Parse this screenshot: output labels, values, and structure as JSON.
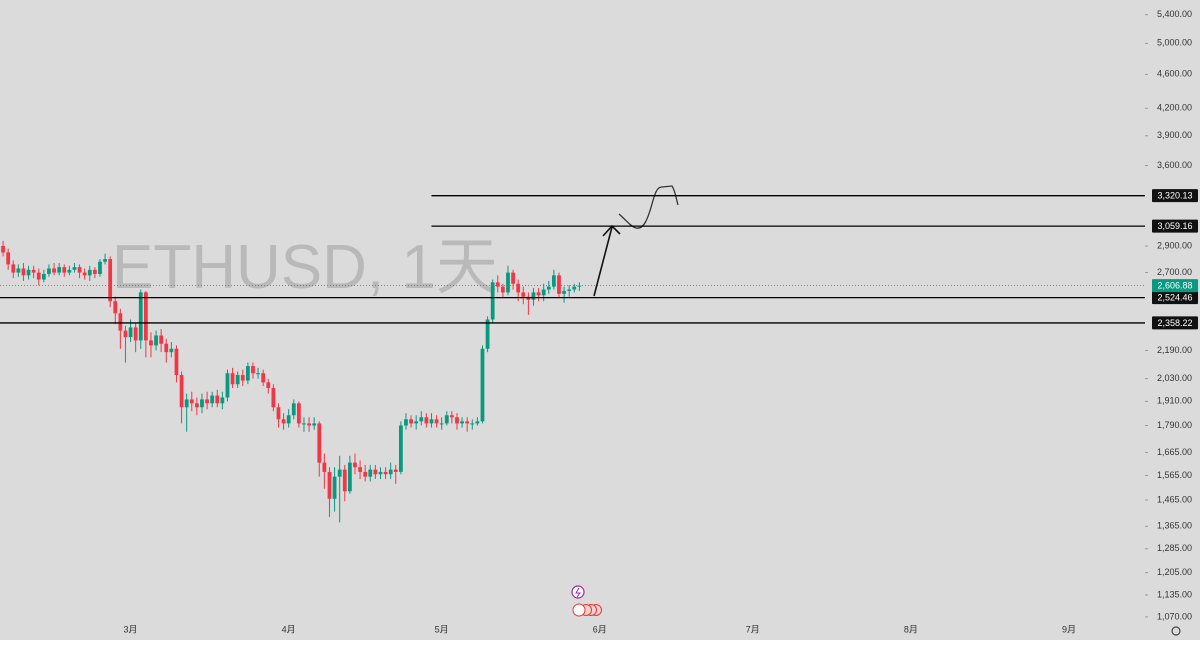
{
  "chart_data": {
    "type": "candlestick",
    "watermark": "ETHUSD, 1天",
    "log_scale": true,
    "up_color": "#089981",
    "down_color": "#f23645",
    "xlim": [
      -0.6,
      223.9
    ],
    "xticks": [
      {
        "value": 25,
        "label": "3月"
      },
      {
        "value": 56,
        "label": "4月"
      },
      {
        "value": 86,
        "label": "5月"
      },
      {
        "value": 117,
        "label": "6月"
      },
      {
        "value": 147,
        "label": "7月"
      },
      {
        "value": 178,
        "label": "8月"
      },
      {
        "value": 209,
        "label": "9月"
      }
    ],
    "ylim": [
      1033,
      5618
    ],
    "yticks": [
      {
        "value": 1070,
        "label": "1,070.00"
      },
      {
        "value": 1135,
        "label": "1,135.00"
      },
      {
        "value": 1205,
        "label": "1,205.00"
      },
      {
        "value": 1285,
        "label": "1,285.00"
      },
      {
        "value": 1365,
        "label": "1,365.00"
      },
      {
        "value": 1465,
        "label": "1,465.00"
      },
      {
        "value": 1565,
        "label": "1,565.00"
      },
      {
        "value": 1665,
        "label": "1,665.00"
      },
      {
        "value": 1790,
        "label": "1,790.00"
      },
      {
        "value": 1910,
        "label": "1,910.00"
      },
      {
        "value": 2030,
        "label": "2,030.00"
      },
      {
        "value": 2190,
        "label": "2,190.00"
      },
      {
        "value": 2700,
        "label": "2,700.00"
      },
      {
        "value": 2900,
        "label": "2,900.00"
      },
      {
        "value": 3600,
        "label": "3,600.00"
      },
      {
        "value": 3900,
        "label": "3,900.00"
      },
      {
        "value": 4200,
        "label": "4,200.00"
      },
      {
        "value": 4600,
        "label": "4,600.00"
      },
      {
        "value": 5000,
        "label": "5,000.00"
      },
      {
        "value": 5400,
        "label": "5,400.00"
      }
    ],
    "open": [
      2900,
      2850,
      2760,
      2700,
      2730,
      2680,
      2720,
      2700,
      2650,
      2690,
      2730,
      2700,
      2740,
      2700,
      2720,
      2740,
      2700,
      2680,
      2720,
      2690,
      2780,
      2800,
      2500,
      2420,
      2310,
      2270,
      2330,
      2250,
      2560,
      2250,
      2220,
      2280,
      2230,
      2180,
      2200,
      2050,
      1880,
      1920,
      1900,
      1880,
      1920,
      1900,
      1940,
      1900,
      1930,
      2060,
      2000,
      2050,
      2020,
      2100,
      2060,
      2060,
      2010,
      1980,
      1880,
      1820,
      1800,
      1840,
      1900,
      1800,
      1800,
      1790,
      1800,
      1620,
      1580,
      1470,
      1560,
      1590,
      1500,
      1620,
      1600,
      1580,
      1560,
      1590,
      1570,
      1580,
      1570,
      1590,
      1580,
      1790,
      1820,
      1800,
      1810,
      1830,
      1800,
      1820,
      1800,
      1800,
      1840,
      1830,
      1800,
      1810,
      1800,
      1800,
      1810,
      2200,
      2380,
      2630,
      2600,
      2560,
      2700,
      2620,
      2560,
      2530,
      2510,
      2560,
      2540,
      2580,
      2600,
      2680,
      2550,
      2570,
      2580,
      2600
    ],
    "high": [
      2940,
      2880,
      2790,
      2760,
      2770,
      2750,
      2750,
      2730,
      2720,
      2760,
      2770,
      2770,
      2760,
      2750,
      2770,
      2760,
      2730,
      2750,
      2740,
      2800,
      2840,
      2820,
      2530,
      2450,
      2340,
      2380,
      2360,
      2580,
      2570,
      2300,
      2310,
      2320,
      2260,
      2240,
      2220,
      2070,
      1950,
      1960,
      1930,
      1950,
      1960,
      1960,
      1970,
      1960,
      2080,
      2090,
      2070,
      2080,
      2120,
      2120,
      2090,
      2080,
      2030,
      2000,
      1900,
      1850,
      1870,
      1920,
      1910,
      1830,
      1830,
      1830,
      1810,
      1660,
      1600,
      1600,
      1650,
      1610,
      1650,
      1660,
      1630,
      1610,
      1610,
      1610,
      1600,
      1600,
      1620,
      1610,
      1810,
      1850,
      1840,
      1840,
      1860,
      1850,
      1850,
      1840,
      1830,
      1860,
      1860,
      1850,
      1830,
      1830,
      1820,
      1830,
      2220,
      2400,
      2650,
      2680,
      2620,
      2750,
      2720,
      2650,
      2600,
      2560,
      2590,
      2590,
      2620,
      2640,
      2720,
      2700,
      2600,
      2610,
      2620,
      2630
    ],
    "low": [
      2820,
      2720,
      2660,
      2670,
      2640,
      2650,
      2660,
      2610,
      2630,
      2670,
      2680,
      2680,
      2670,
      2680,
      2700,
      2660,
      2650,
      2640,
      2660,
      2670,
      2760,
      2460,
      2350,
      2200,
      2120,
      2240,
      2180,
      2200,
      2150,
      2150,
      2190,
      2180,
      2120,
      2150,
      2010,
      1800,
      1760,
      1860,
      1840,
      1850,
      1870,
      1880,
      1880,
      1870,
      1910,
      1980,
      1980,
      1990,
      2000,
      2030,
      2030,
      1990,
      1950,
      1860,
      1780,
      1770,
      1780,
      1820,
      1780,
      1760,
      1760,
      1770,
      1560,
      1510,
      1400,
      1420,
      1380,
      1460,
      1490,
      1570,
      1550,
      1540,
      1540,
      1550,
      1550,
      1550,
      1550,
      1530,
      1570,
      1770,
      1780,
      1770,
      1790,
      1780,
      1780,
      1780,
      1770,
      1790,
      1800,
      1770,
      1780,
      1760,
      1770,
      1790,
      1800,
      2180,
      2360,
      2560,
      2520,
      2540,
      2580,
      2500,
      2480,
      2410,
      2470,
      2500,
      2500,
      2550,
      2580,
      2520,
      2490,
      2530,
      2560,
      2570
    ],
    "close": [
      2850,
      2760,
      2700,
      2730,
      2680,
      2720,
      2700,
      2650,
      2690,
      2730,
      2700,
      2740,
      2700,
      2720,
      2740,
      2700,
      2680,
      2720,
      2690,
      2780,
      2800,
      2500,
      2420,
      2310,
      2270,
      2330,
      2250,
      2560,
      2250,
      2220,
      2280,
      2230,
      2180,
      2200,
      2050,
      1880,
      1920,
      1900,
      1880,
      1920,
      1900,
      1940,
      1900,
      1930,
      2060,
      2000,
      2050,
      2020,
      2100,
      2060,
      2060,
      2010,
      1980,
      1880,
      1820,
      1800,
      1840,
      1900,
      1800,
      1800,
      1790,
      1800,
      1620,
      1580,
      1470,
      1560,
      1590,
      1500,
      1620,
      1600,
      1580,
      1560,
      1590,
      1570,
      1580,
      1570,
      1590,
      1580,
      1790,
      1820,
      1800,
      1810,
      1830,
      1800,
      1820,
      1800,
      1800,
      1840,
      1830,
      1800,
      1810,
      1800,
      1800,
      1810,
      2200,
      2380,
      2630,
      2600,
      2560,
      2700,
      2620,
      2560,
      2530,
      2510,
      2560,
      2540,
      2580,
      2600,
      2680,
      2550,
      2570,
      2580,
      2600,
      2606.88
    ],
    "price_line": {
      "value": 2606.88,
      "label": "2,606.88",
      "color": "#089981"
    },
    "levels": [
      {
        "value": 3320.13,
        "label": "3,320.13",
        "from": 84
      },
      {
        "value": 3059.16,
        "label": "3,059.16",
        "from": 84
      },
      {
        "value": 2524.46,
        "label": "2,524.46",
        "from": -0.6
      },
      {
        "value": 2358.22,
        "label": "2,358.22",
        "from": -0.6
      }
    ]
  }
}
